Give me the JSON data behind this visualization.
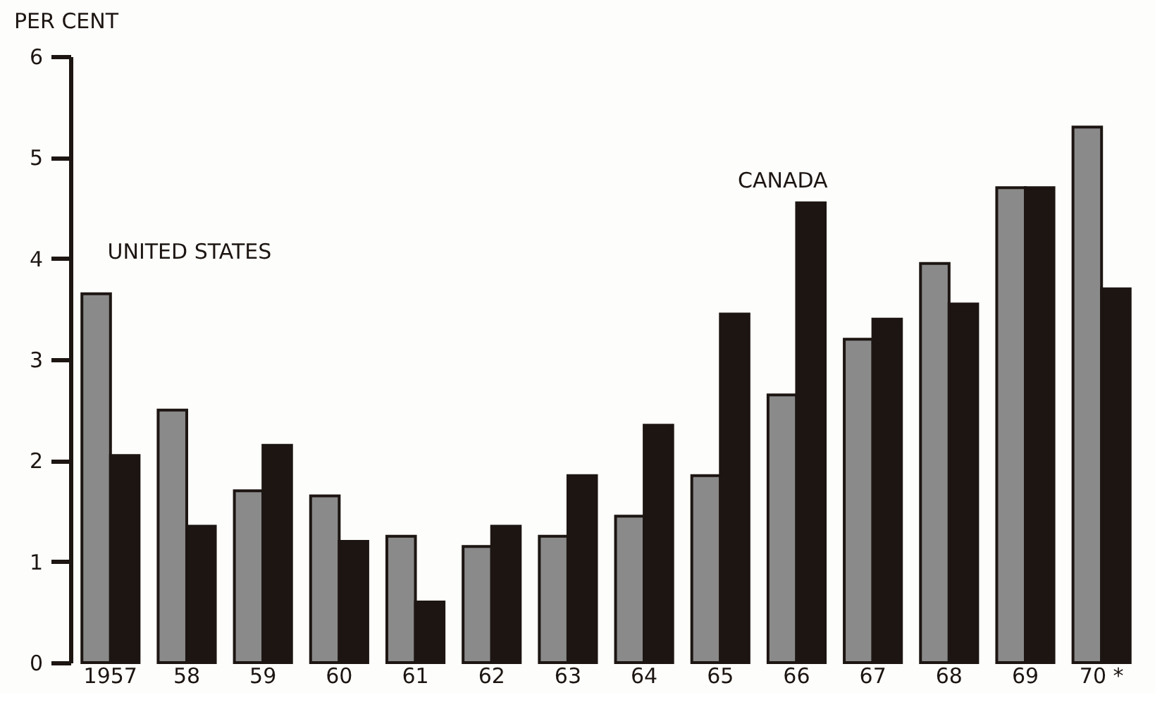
{
  "chart_data": {
    "type": "bar",
    "ylabel": "PER CENT",
    "categories": [
      "1957",
      "58",
      "59",
      "60",
      "61",
      "62",
      "63",
      "64",
      "65",
      "66",
      "67",
      "68",
      "69",
      "70 *"
    ],
    "series": [
      {
        "name": "UNITED STATES",
        "color": "#8a8a8a",
        "values": [
          3.65,
          2.5,
          1.7,
          1.65,
          1.25,
          1.15,
          1.25,
          1.45,
          1.85,
          2.65,
          3.2,
          3.95,
          4.7,
          5.3
        ]
      },
      {
        "name": "CANADA",
        "color": "#1c1512",
        "values": [
          2.05,
          1.35,
          2.15,
          1.2,
          0.6,
          1.35,
          1.85,
          2.35,
          3.45,
          4.55,
          3.4,
          3.55,
          4.7,
          3.7
        ]
      }
    ],
    "ylim": [
      0,
      6
    ],
    "yticks": [
      0,
      1,
      2,
      3,
      4,
      5,
      6
    ],
    "grid": false,
    "legend": false
  }
}
